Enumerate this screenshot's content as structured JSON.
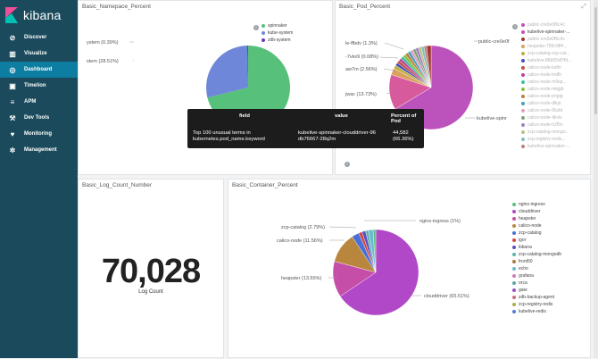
{
  "app": {
    "name": "kibana"
  },
  "sidebar": {
    "items": [
      {
        "label": "Discover",
        "icon": "compass-icon",
        "glyph": "⊘"
      },
      {
        "label": "Visualize",
        "icon": "bar-chart-icon",
        "glyph": "▥"
      },
      {
        "label": "Dashboard",
        "icon": "dashboard-icon",
        "glyph": "◎",
        "active": true
      },
      {
        "label": "Timelion",
        "icon": "timelion-icon",
        "glyph": "▣"
      },
      {
        "label": "APM",
        "icon": "apm-icon",
        "glyph": "≡"
      },
      {
        "label": "Dev Tools",
        "icon": "wrench-icon",
        "glyph": "⚒"
      },
      {
        "label": "Monitoring",
        "icon": "heart-icon",
        "glyph": "♥"
      },
      {
        "label": "Management",
        "icon": "gear-icon",
        "glyph": "✲"
      }
    ]
  },
  "panels": {
    "namespace": {
      "title": "Basic_Namepace_Percent",
      "labels": [
        "ystem (0.39%)",
        "stem (28.51%)"
      ],
      "legend": [
        {
          "label": "spinnaker",
          "color": "#57c17b"
        },
        {
          "label": "kube-system",
          "color": "#6f87d8"
        },
        {
          "label": "zdb-system",
          "color": "#663db8"
        }
      ]
    },
    "pod": {
      "title": "Basic_Pod_Percent",
      "labels": [
        "le-ffbdv (1.3%)",
        "-7vkx9 (0.08%)",
        "aw7m (2.56%)",
        "jwac (13.73%)",
        "kubelive-spinr",
        "public-cre0e0f"
      ],
      "legend": [
        {
          "label": "public-cre0e0f6c4c",
          "color": "#bc52bc",
          "faded": true
        },
        {
          "label": "kubelive-spinnaker-...",
          "color": "#bc52bc",
          "faded": false
        },
        {
          "label": "public-cre0e0f6c4c",
          "color": "#9e3533",
          "faded": true
        },
        {
          "label": "heapster-789c9ff4...",
          "color": "#daa05d",
          "faded": true
        },
        {
          "label": "zcp-catalog-zcp-cat...",
          "color": "#bfaf40",
          "faded": true
        },
        {
          "label": "kubelive-88b55df7fd...",
          "color": "#4050bf",
          "faded": true
        },
        {
          "label": "calico-node-ks8n",
          "color": "#bf5040",
          "faded": true
        },
        {
          "label": "calico-node-lm8h",
          "color": "#bf40a0",
          "faded": true
        },
        {
          "label": "calico-node-m9sp...",
          "color": "#40bfa0",
          "faded": true
        },
        {
          "label": "calico-node-mkjgb",
          "color": "#8bbf40",
          "faded": true
        },
        {
          "label": "calico-node-pnglg",
          "color": "#bf8040",
          "faded": true
        },
        {
          "label": "calico-node-dlkjn",
          "color": "#40a0bf",
          "faded": true
        },
        {
          "label": "calico-node-6kzbt",
          "color": "#e0a0c0",
          "faded": true
        },
        {
          "label": "calico-node-4kvlx",
          "color": "#80a080",
          "faded": true
        },
        {
          "label": "calico-node-h2f9x",
          "color": "#a080c0",
          "faded": true
        },
        {
          "label": "zcp-catalog-mongo...",
          "color": "#c0c080",
          "faded": true
        },
        {
          "label": "zcp-registry-redis...",
          "color": "#80c0c0",
          "faded": true
        },
        {
          "label": "kubelive-spinnaker-...",
          "color": "#c08080",
          "faded": true
        }
      ]
    },
    "log_count": {
      "title": "Basic_Log_Count_Number",
      "value": "70,028",
      "label": "Log Count"
    },
    "container": {
      "title": "Basic_Container_Percent",
      "labels": [
        "nginx-ingress (1%)",
        "zcp-catalog (2.79%)",
        "calico-node (11.56%)",
        "heapster (13.55%)",
        "clouddriver (65.51%)"
      ],
      "legend": [
        {
          "label": "nginx-ingress",
          "color": "#57c17b"
        },
        {
          "label": "clouddriver",
          "color": "#b148c7"
        },
        {
          "label": "heapster",
          "color": "#c54fa8"
        },
        {
          "label": "calico-node",
          "color": "#b9863d"
        },
        {
          "label": "zcp-catalog",
          "color": "#4a6fd6"
        },
        {
          "label": "igor",
          "color": "#d04540"
        },
        {
          "label": "kibana",
          "color": "#5b4fc6"
        },
        {
          "label": "zcp-catalog-mongodb",
          "color": "#5bb4a8"
        },
        {
          "label": "front50",
          "color": "#b07840"
        },
        {
          "label": "echo",
          "color": "#6cb8d4"
        },
        {
          "label": "grafana",
          "color": "#d07cb0"
        },
        {
          "label": "orca",
          "color": "#5fa6a6"
        },
        {
          "label": "gate",
          "color": "#9a4fc6"
        },
        {
          "label": "zdb-backup-agent",
          "color": "#d36a7a"
        },
        {
          "label": "zcp-registry-redis",
          "color": "#a9b040"
        },
        {
          "label": "kubelive-redis",
          "color": "#5878d8"
        }
      ]
    }
  },
  "tooltip": {
    "headers": {
      "field": "field",
      "value": "value",
      "percent": "Percent of Pod"
    },
    "field_text": "Top 100 unusual terms in kubernetes.pod_name.keyword",
    "value_text": "kubelive-spinnaker-clouddriver-96 db76667-28q2m",
    "percent_text": "44,582 (66.36%)"
  }
}
